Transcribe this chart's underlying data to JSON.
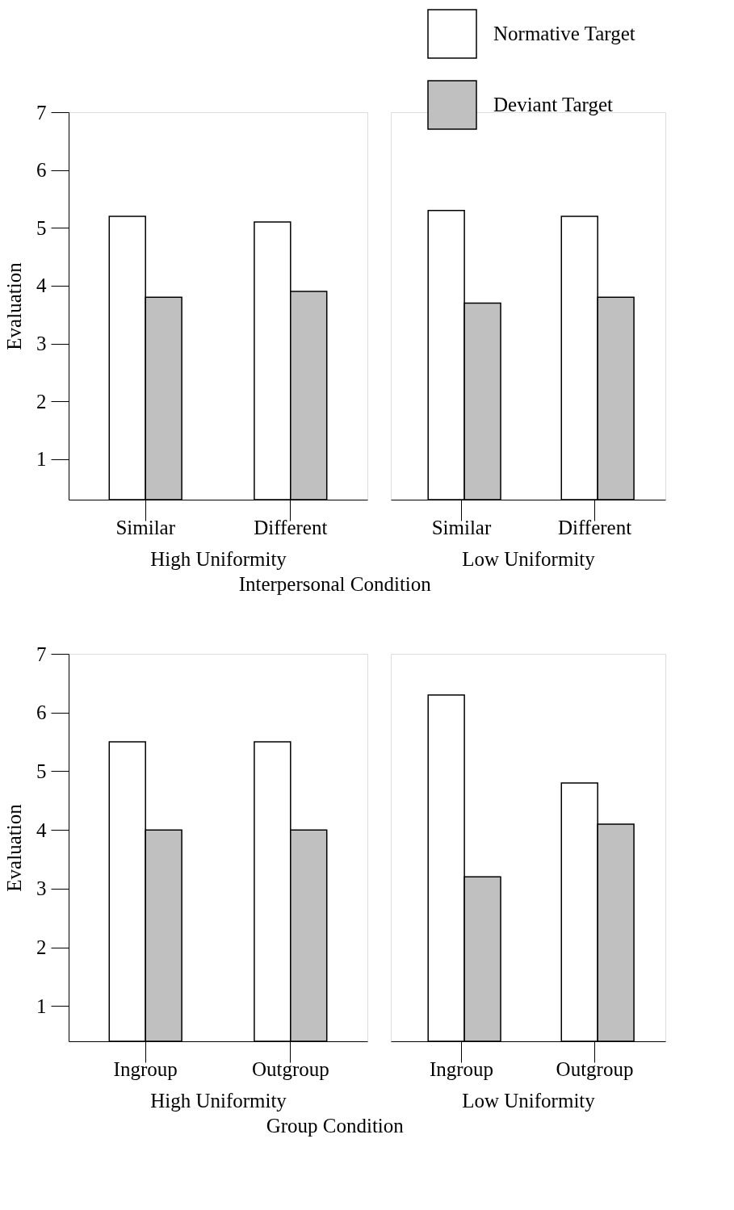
{
  "chart_data": [
    {
      "type": "bar",
      "categories": [
        "Similar",
        "Different"
      ],
      "xlabel": "High Uniformity",
      "ylabel": "Evaluation",
      "ylim": [
        0.3,
        7
      ],
      "yticks": [
        1,
        2,
        3,
        4,
        5,
        6,
        7
      ],
      "annotations": [
        "Interpersonal Condition"
      ],
      "series": [
        {
          "color": "#ffffff",
          "values": [
            5.2,
            5.1
          ]
        },
        {
          "color": "#c0c0c0",
          "values": [
            3.8,
            3.9
          ]
        }
      ]
    },
    {
      "type": "bar",
      "categories": [
        "Similar",
        "Different"
      ],
      "xlabel": "Low Uniformity",
      "ylim": [
        0.3,
        7
      ],
      "tick_labels": "x",
      "legend": "top right",
      "series": [
        {
          "name": "Normative Target",
          "color": "#ffffff",
          "values": [
            5.3,
            5.2
          ]
        },
        {
          "name": "Deviant Target",
          "color": "#c0c0c0",
          "values": [
            3.7,
            3.8
          ]
        }
      ]
    },
    {
      "type": "bar",
      "categories": [
        "Ingroup",
        "Outgroup"
      ],
      "xlabel": "High Uniformity",
      "ylabel": "Evaluation",
      "ylim": [
        0.4,
        7
      ],
      "yticks": [
        1,
        2,
        3,
        4,
        5,
        6,
        7
      ],
      "annotations": [
        "Group Condition"
      ],
      "series": [
        {
          "color": "#ffffff",
          "values": [
            5.5,
            5.5
          ]
        },
        {
          "color": "#c0c0c0",
          "values": [
            4.0,
            4.0
          ]
        }
      ]
    },
    {
      "type": "bar",
      "categories": [
        "Ingroup",
        "Outgroup"
      ],
      "xlabel": "Low Uniformity",
      "ylim": [
        0.4,
        7
      ],
      "tick_labels": "x",
      "series": [
        {
          "color": "#ffffff",
          "values": [
            6.3,
            4.8
          ]
        },
        {
          "color": "#c0c0c0",
          "values": [
            3.2,
            4.1
          ]
        }
      ]
    }
  ]
}
